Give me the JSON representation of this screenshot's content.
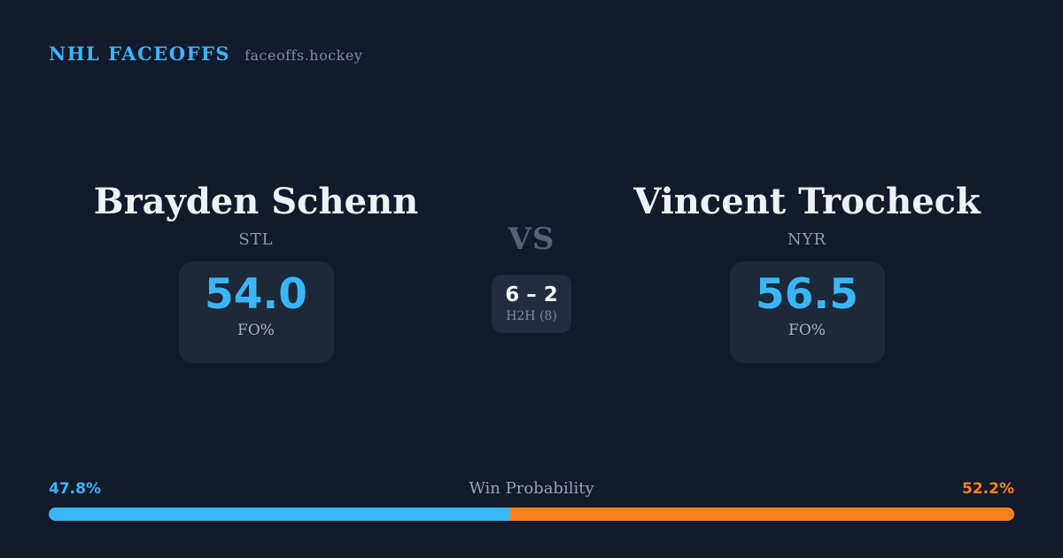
{
  "header": {
    "brand": "NHL FACEOFFS",
    "site": "faceoffs.hockey"
  },
  "matchup": {
    "left": {
      "name": "Brayden Schenn",
      "team": "STL",
      "stat_value": "54.0",
      "stat_label": "FO%"
    },
    "right": {
      "name": "Vincent Trocheck",
      "team": "NYR",
      "stat_value": "56.5",
      "stat_label": "FO%"
    },
    "center": {
      "vs_label": "VS",
      "h2h_score": "6 – 2",
      "h2h_label": "H2H (8)"
    }
  },
  "win_probability": {
    "title": "Win Probability",
    "left_label": "47.8%",
    "right_label": "52.2%",
    "left_pct": 47.8,
    "right_pct": 52.2
  },
  "colors": {
    "accent_blue": "#38b7f8",
    "accent_orange": "#f8821a",
    "background": "#121a2c",
    "card": "#1d2838",
    "chip": "#212c3e"
  }
}
